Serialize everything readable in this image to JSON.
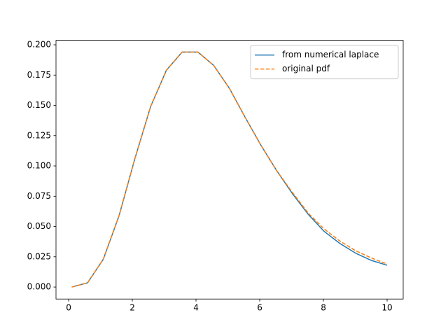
{
  "chart_data": {
    "type": "line",
    "x": [
      0.1,
      0.595,
      1.09,
      1.585,
      2.08,
      2.575,
      3.07,
      3.565,
      4.06,
      4.555,
      5.05,
      5.545,
      6.04,
      6.535,
      7.03,
      7.525,
      8.02,
      8.515,
      9.01,
      9.505,
      10
    ],
    "series": [
      {
        "name": "from numerical laplace",
        "color": "#1f77b4",
        "dash": "solid",
        "values": [
          0.0,
          0.0035,
          0.023,
          0.059,
          0.106,
          0.149,
          0.179,
          0.194,
          0.194,
          0.183,
          0.164,
          0.14,
          0.117,
          0.096,
          0.077,
          0.06,
          0.046,
          0.036,
          0.028,
          0.022,
          0.018
        ]
      },
      {
        "name": "original pdf",
        "color": "#ff7f0e",
        "dash": "dashed",
        "values": [
          0.0,
          0.0035,
          0.023,
          0.059,
          0.106,
          0.149,
          0.179,
          0.194,
          0.194,
          0.183,
          0.164,
          0.14,
          0.117,
          0.096,
          0.078,
          0.061,
          0.048,
          0.038,
          0.03,
          0.024,
          0.019
        ]
      }
    ],
    "xlim": [
      -0.396,
      10.505
    ],
    "ylim": [
      -0.0099,
      0.2037
    ],
    "xticks": [
      0,
      2,
      4,
      6,
      8,
      10
    ],
    "yticks": [
      {
        "value": 0,
        "label": "0.000"
      },
      {
        "value": 0.025,
        "label": "0.025"
      },
      {
        "value": 0.05,
        "label": "0.050"
      },
      {
        "value": 0.075,
        "label": "0.075"
      },
      {
        "value": 0.1,
        "label": "0.100"
      },
      {
        "value": 0.125,
        "label": "0.125"
      },
      {
        "value": 0.15,
        "label": "0.150"
      },
      {
        "value": 0.175,
        "label": "0.175"
      },
      {
        "value": 0.2,
        "label": "0.200"
      }
    ],
    "legend": "upper right",
    "grid": false
  }
}
